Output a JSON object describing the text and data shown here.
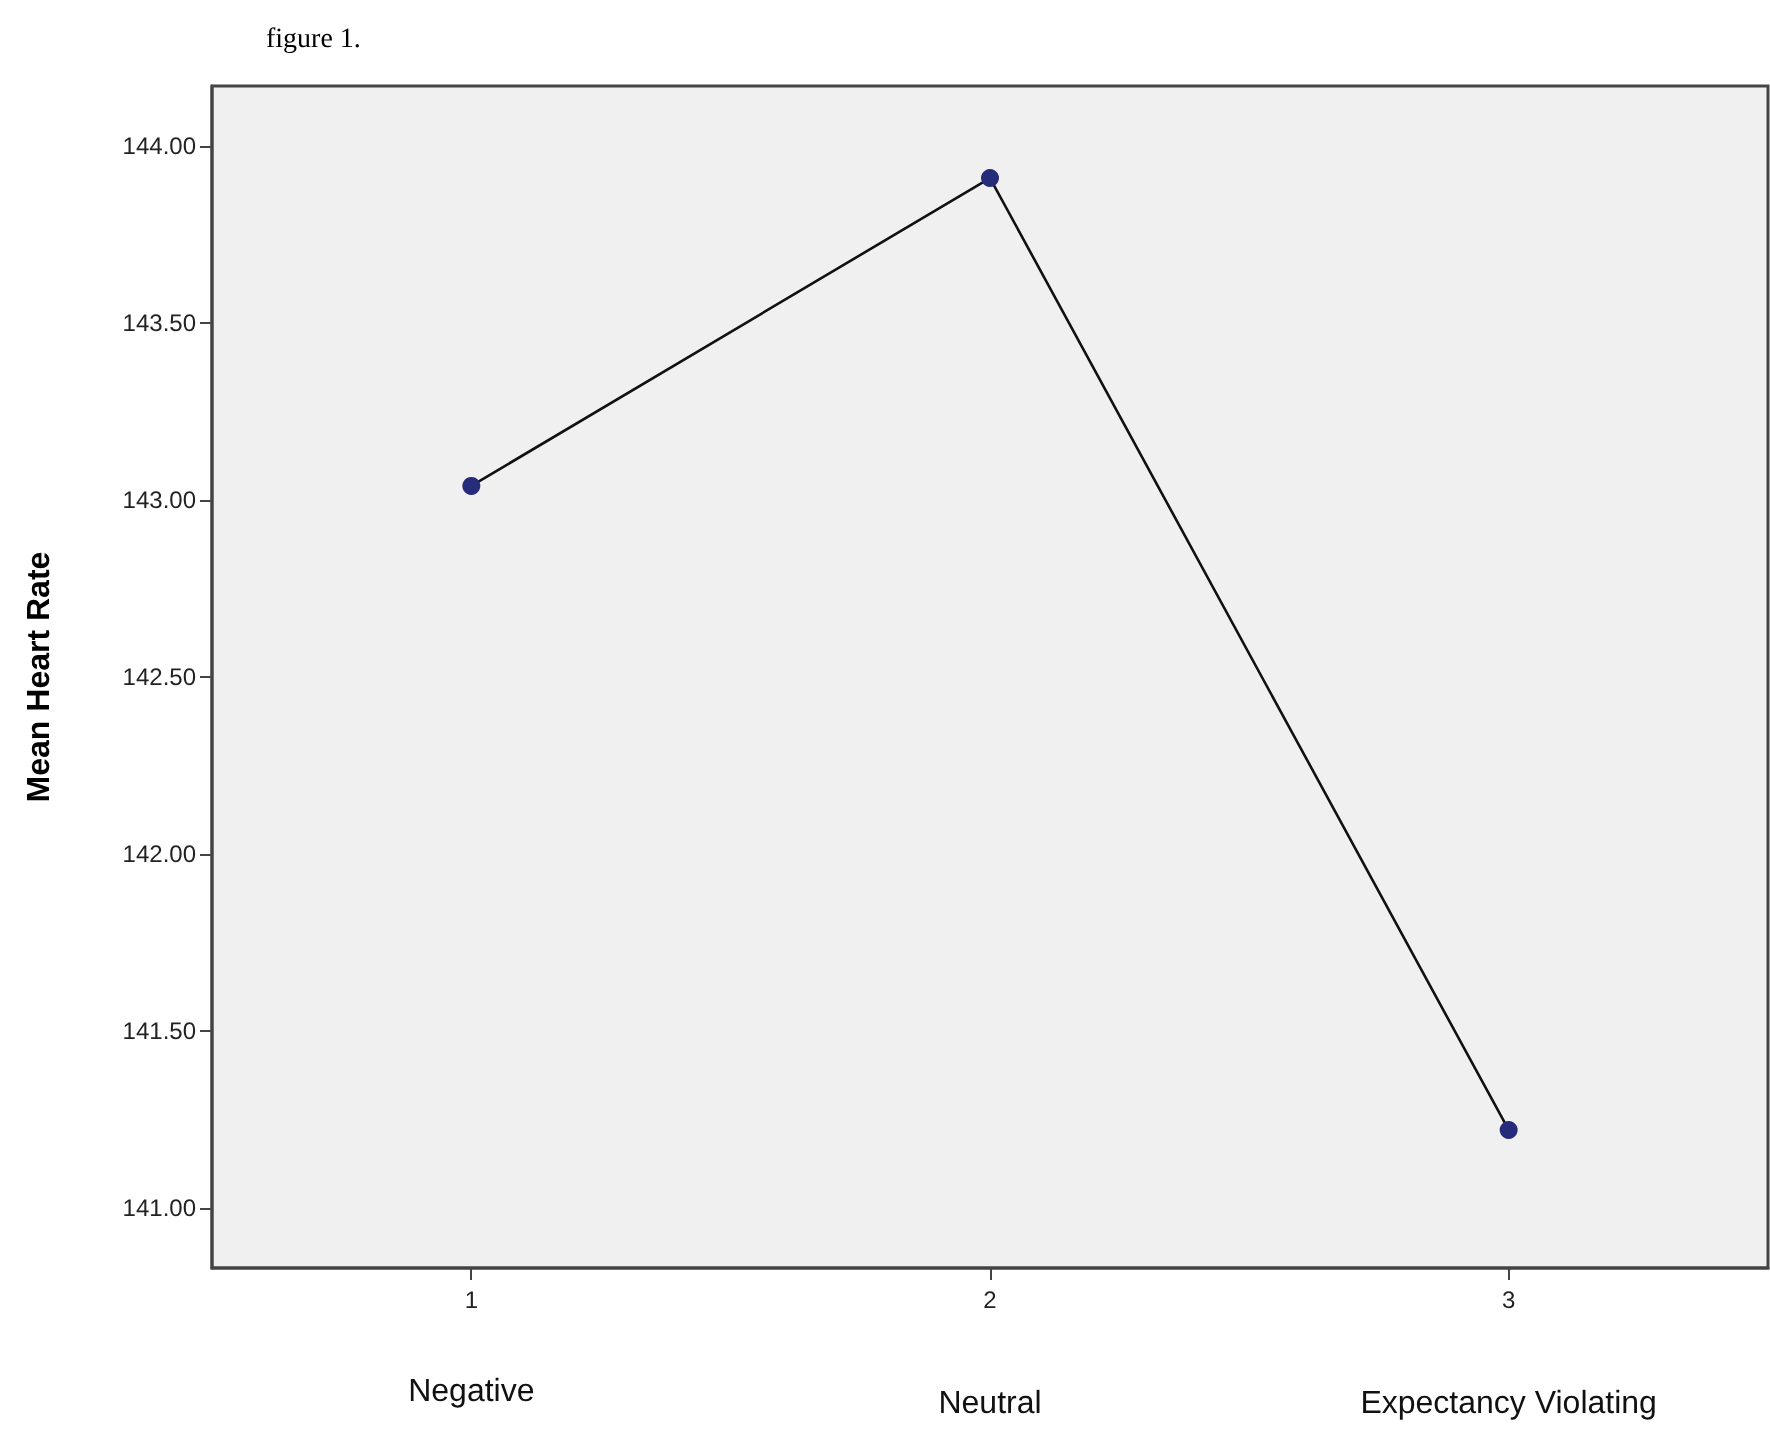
{
  "chart_data": {
    "type": "line",
    "title": "figure 1.",
    "ylabel": "Mean Heart Rate",
    "categories": [
      "1",
      "2",
      "3"
    ],
    "series": [
      {
        "color": "#262c7a",
        "values": [
          143.04,
          143.91,
          141.22
        ]
      }
    ],
    "ylim": [
      140.83,
      144.17
    ],
    "yticks": [
      {
        "value": 141,
        "label": "141.00"
      },
      {
        "value": 141.5,
        "label": "141.50"
      },
      {
        "value": 142,
        "label": "142.00"
      },
      {
        "value": 142.5,
        "label": "142.50"
      },
      {
        "value": 143,
        "label": "143.00"
      },
      {
        "value": 143.5,
        "label": "143.50"
      },
      {
        "value": 144,
        "label": "144.00"
      }
    ],
    "annotations": [
      "Negative",
      "Neutral",
      "Expectancy Violating"
    ],
    "marker": "circle",
    "line_style": "solid"
  }
}
